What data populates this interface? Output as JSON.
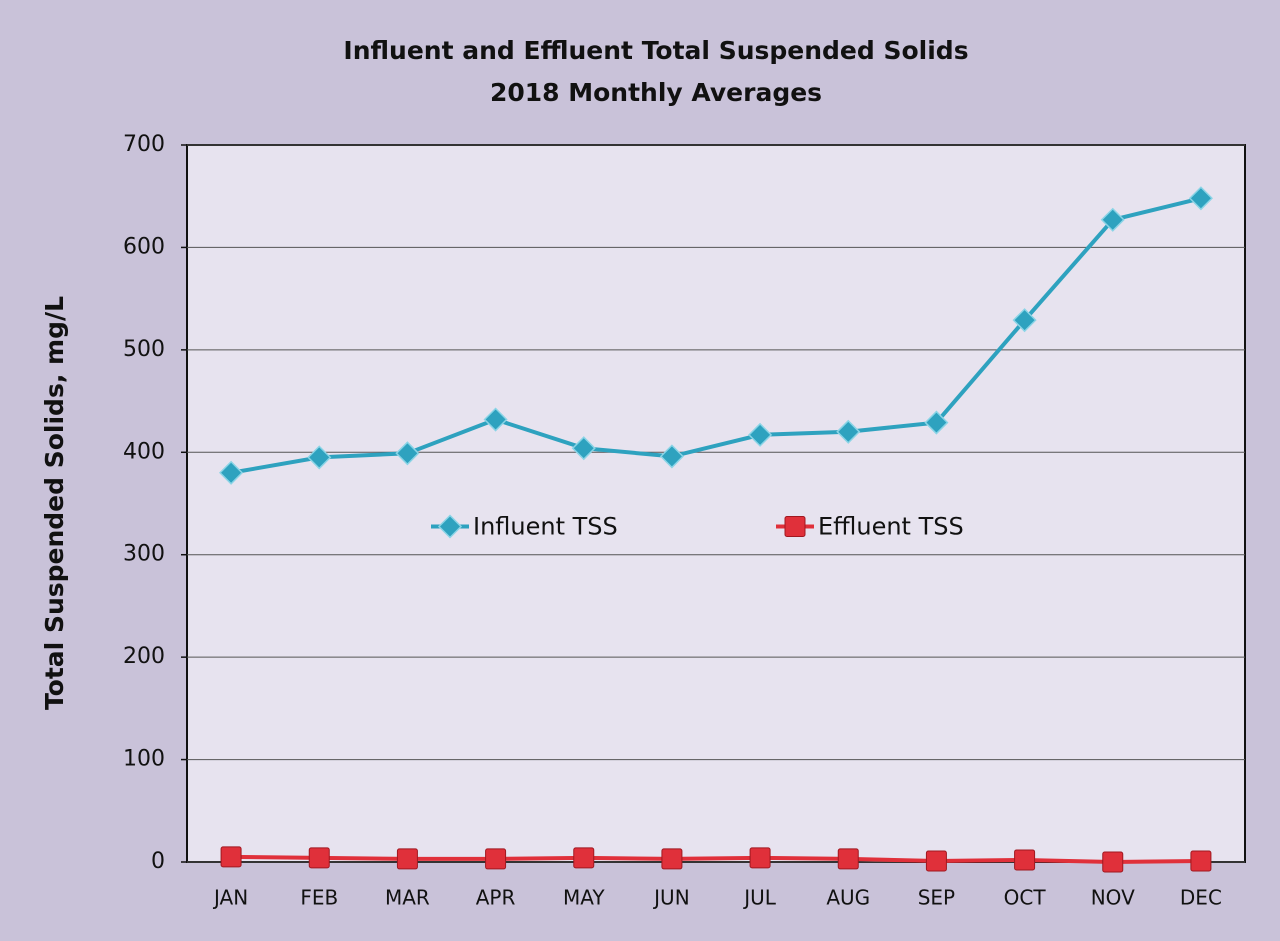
{
  "chart_data": {
    "type": "line",
    "title": "Influent and Effluent Total Suspended Solids",
    "subtitle": "2018 Monthly Averages",
    "y_label": "Total Suspended Solids, mg/L",
    "categories": [
      "JAN",
      "FEB",
      "MAR",
      "APR",
      "MAY",
      "JUN",
      "JUL",
      "AUG",
      "SEP",
      "OCT",
      "NOV",
      "DEC"
    ],
    "series": [
      {
        "name": "Influent TSS",
        "color": "#2ea2bf",
        "marker": "diamond",
        "values": [
          380,
          395,
          399,
          432,
          404,
          396,
          417,
          420,
          429,
          529,
          627,
          648
        ]
      },
      {
        "name": "Effluent TSS",
        "color": "#e0303a",
        "marker": "square",
        "values": [
          5,
          4,
          3,
          3,
          4,
          3,
          4,
          3,
          1,
          2,
          0,
          1
        ]
      }
    ],
    "ylim": [
      0,
      700
    ],
    "yticks": [
      0,
      100,
      200,
      300,
      400,
      500,
      600,
      700
    ],
    "grid": true,
    "legend": "center"
  }
}
